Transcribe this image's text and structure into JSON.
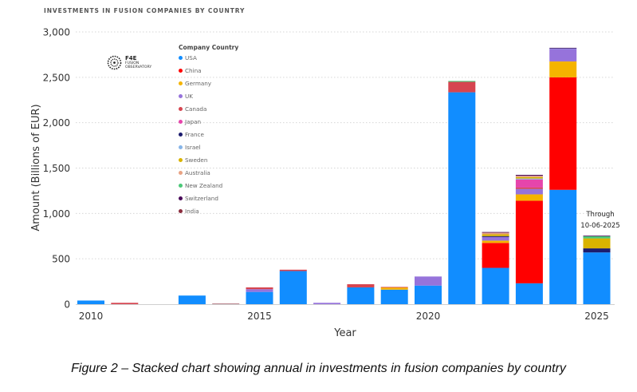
{
  "title": "INVESTMENTS IN FUSION COMPANIES BY COUNTRY",
  "caption": "Figure 2 – Stacked chart showing annual in investments in fusion companies by country",
  "logo": {
    "line1": "F4E",
    "line2a": "FUSION",
    "line2b": "OBSERVATORY"
  },
  "annotation": {
    "line1": "Through",
    "line2": "10-06-2025"
  },
  "chart_data": {
    "type": "bar",
    "stacked": true,
    "title": "INVESTMENTS IN FUSION COMPANIES BY COUNTRY",
    "xlabel": "Year",
    "ylabel": "Amount (Billions of EUR)",
    "ylim": [
      0,
      3000
    ],
    "yticks": [
      "0",
      "500",
      "1,000",
      "1,500",
      "2,000",
      "2,500",
      "3,000"
    ],
    "ytick_values": [
      0,
      500,
      1000,
      1500,
      2000,
      2500,
      3000
    ],
    "xtick_labels": [
      "2010",
      "2015",
      "2020",
      "2025"
    ],
    "grid": "horizontal dotted",
    "legend_title": "Company Country",
    "legend_position": "top-left",
    "categories": [
      "2010",
      "2011",
      "2012",
      "2013",
      "2014",
      "2015",
      "2016",
      "2017",
      "2018",
      "2019",
      "2020",
      "2021",
      "2022",
      "2023",
      "2024",
      "2025"
    ],
    "series": [
      {
        "name": "USA",
        "color": "#118DFF",
        "values": [
          40,
          0,
          0,
          95,
          0,
          135,
          365,
          0,
          185,
          160,
          205,
          2335,
          400,
          230,
          1260,
          570
        ]
      },
      {
        "name": "China",
        "color": "#FF0000",
        "values": [
          0,
          0,
          0,
          0,
          0,
          0,
          0,
          0,
          0,
          0,
          0,
          0,
          275,
          910,
          1240,
          0
        ]
      },
      {
        "name": "Germany",
        "color": "#F5B400",
        "values": [
          0,
          0,
          0,
          0,
          0,
          0,
          0,
          0,
          0,
          25,
          0,
          0,
          25,
          70,
          175,
          0
        ]
      },
      {
        "name": "UK",
        "color": "#9673DB",
        "values": [
          0,
          0,
          0,
          0,
          0,
          30,
          0,
          15,
          0,
          0,
          100,
          0,
          40,
          60,
          140,
          0
        ]
      },
      {
        "name": "Canada",
        "color": "#D64550",
        "values": [
          0,
          15,
          0,
          0,
          0,
          20,
          15,
          0,
          35,
          5,
          0,
          115,
          0,
          15,
          0,
          0
        ]
      },
      {
        "name": "Japan",
        "color": "#E645AB",
        "values": [
          0,
          0,
          0,
          0,
          0,
          0,
          0,
          0,
          0,
          0,
          0,
          0,
          0,
          90,
          0,
          0
        ]
      },
      {
        "name": "France",
        "color": "#1C1C6E",
        "values": [
          0,
          0,
          0,
          0,
          0,
          0,
          0,
          0,
          0,
          0,
          0,
          0,
          10,
          0,
          0,
          45
        ]
      },
      {
        "name": "Israel",
        "color": "#87B5E8",
        "values": [
          0,
          0,
          0,
          0,
          0,
          0,
          0,
          0,
          0,
          0,
          0,
          0,
          0,
          10,
          5,
          0
        ]
      },
      {
        "name": "Sweden",
        "color": "#D9B300",
        "values": [
          0,
          0,
          0,
          0,
          0,
          0,
          0,
          0,
          0,
          0,
          0,
          0,
          20,
          15,
          0,
          110
        ]
      },
      {
        "name": "Australia",
        "color": "#E8A384",
        "values": [
          0,
          0,
          0,
          0,
          0,
          0,
          0,
          0,
          0,
          0,
          0,
          0,
          20,
          15,
          0,
          0
        ]
      },
      {
        "name": "New Zealand",
        "color": "#4BC878",
        "values": [
          0,
          0,
          0,
          0,
          0,
          0,
          0,
          0,
          0,
          0,
          0,
          10,
          0,
          0,
          0,
          25
        ]
      },
      {
        "name": "Switzerland",
        "color": "#4A0A5A",
        "values": [
          0,
          0,
          0,
          0,
          0,
          0,
          0,
          0,
          0,
          0,
          0,
          0,
          5,
          10,
          5,
          5
        ]
      },
      {
        "name": "India",
        "color": "#8B2D3E",
        "values": [
          0,
          0,
          0,
          0,
          5,
          0,
          0,
          0,
          0,
          0,
          0,
          0,
          0,
          0,
          0,
          0
        ]
      }
    ]
  }
}
